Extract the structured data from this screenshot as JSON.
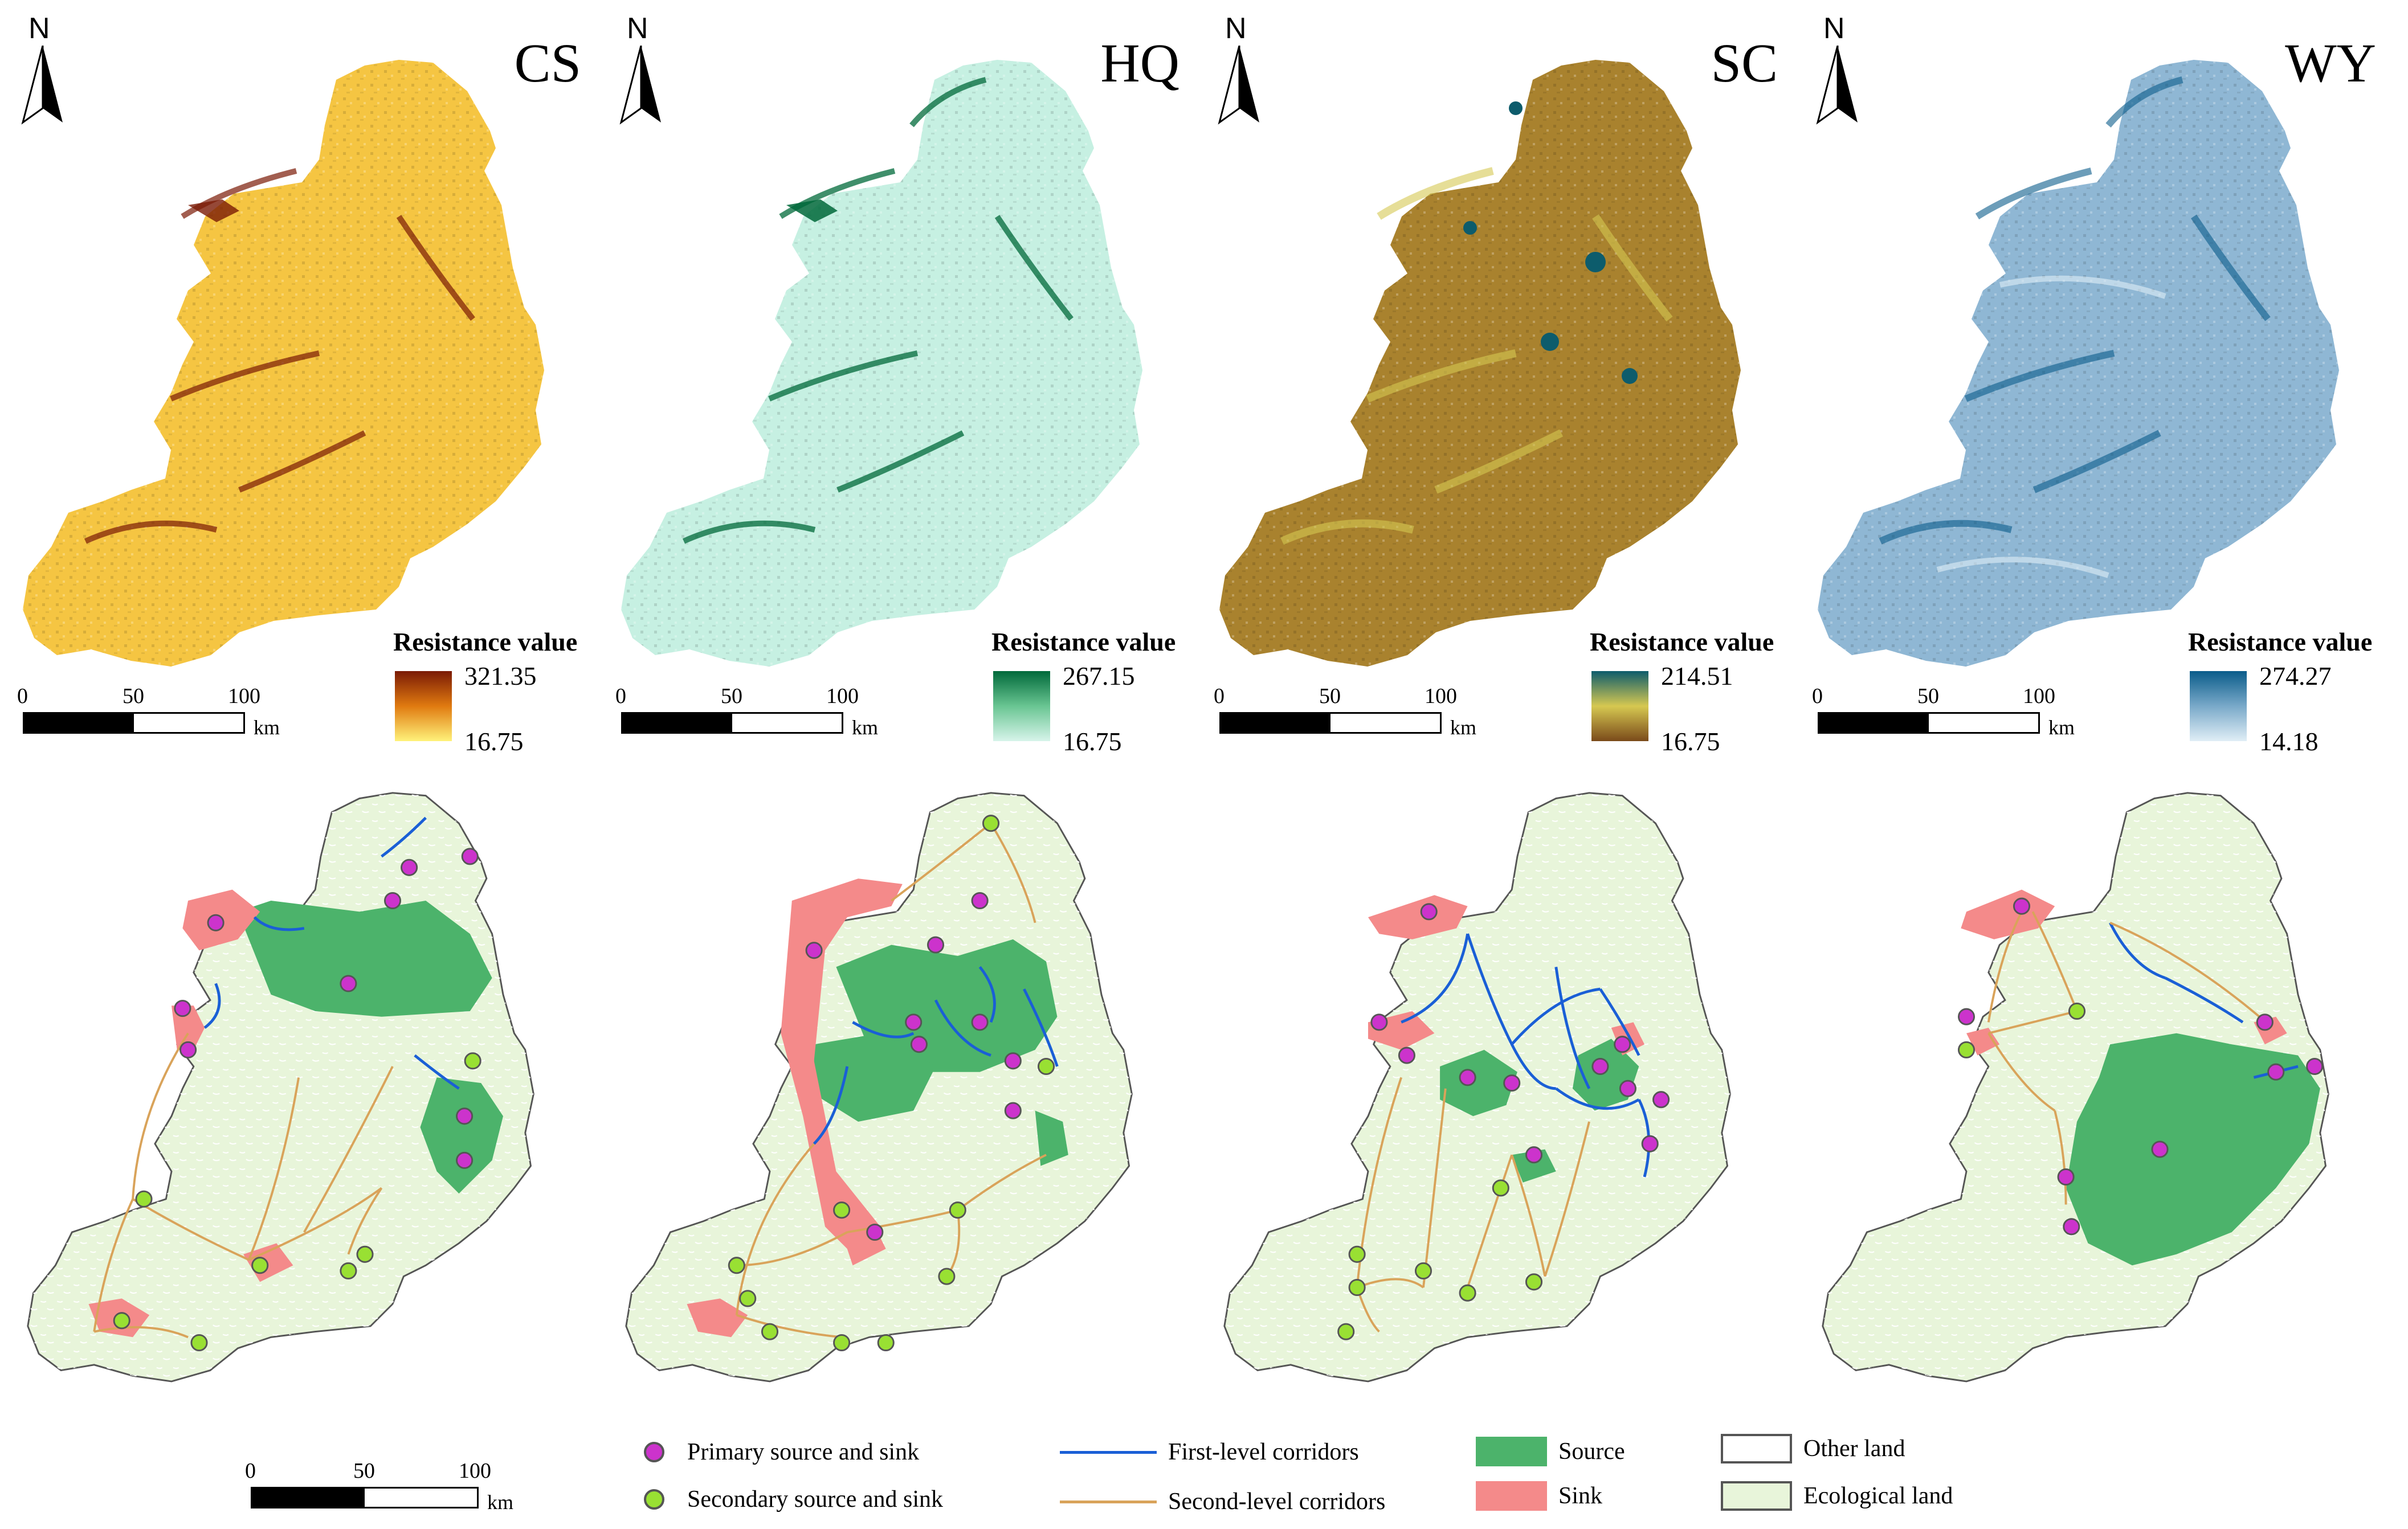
{
  "north_label": "N",
  "top_panels": [
    {
      "code": "CS",
      "legend_title": "Resistance value",
      "max": "321.35",
      "min": "16.75",
      "ramp_high": "#7a1a05",
      "ramp_mid": "#e07a10",
      "ramp_low": "#fff27a",
      "fill_base": "#f5c542"
    },
    {
      "code": "HQ",
      "legend_title": "Resistance value",
      "max": "267.15",
      "min": "16.75",
      "ramp_high": "#00693a",
      "ramp_mid": "#69c592",
      "ramp_low": "#d7f4ea",
      "fill_base": "#bfeee0"
    },
    {
      "code": "SC",
      "legend_title": "Resistance value",
      "max": "214.51",
      "min": "16.75",
      "ramp_high": "#0d5c6c",
      "ramp_mid": "#d6c851",
      "ramp_low": "#7a4a1a",
      "fill_base": "#a9822e"
    },
    {
      "code": "WY",
      "legend_title": "Resistance value",
      "max": "274.27",
      "min": "14.18",
      "ramp_high": "#0a5c8a",
      "ramp_mid": "#79a9c9",
      "ramp_low": "#e0eef6",
      "fill_base": "#8fb7d4"
    }
  ],
  "scale": {
    "t0": "0",
    "t50": "50",
    "t100": "100",
    "unit": "km"
  },
  "legend": {
    "primary": "Primary source and sink",
    "secondary": "Secondary source and sink",
    "first_corridor": "First-level corridors",
    "second_corridor": "Second-level corridors",
    "source": "Source",
    "sink": "Sink",
    "other_land": "Other land",
    "ecological_land": "Ecological land"
  },
  "colors": {
    "primary_dot": "#cc33cc",
    "secondary_dot": "#99e033",
    "first_corridor": "#1a5fd6",
    "second_corridor": "#d9a35a",
    "source": "#4cb36b",
    "sink": "#f48a8a",
    "ecological_land": "#e8f5da",
    "other_land": "#ffffff"
  }
}
